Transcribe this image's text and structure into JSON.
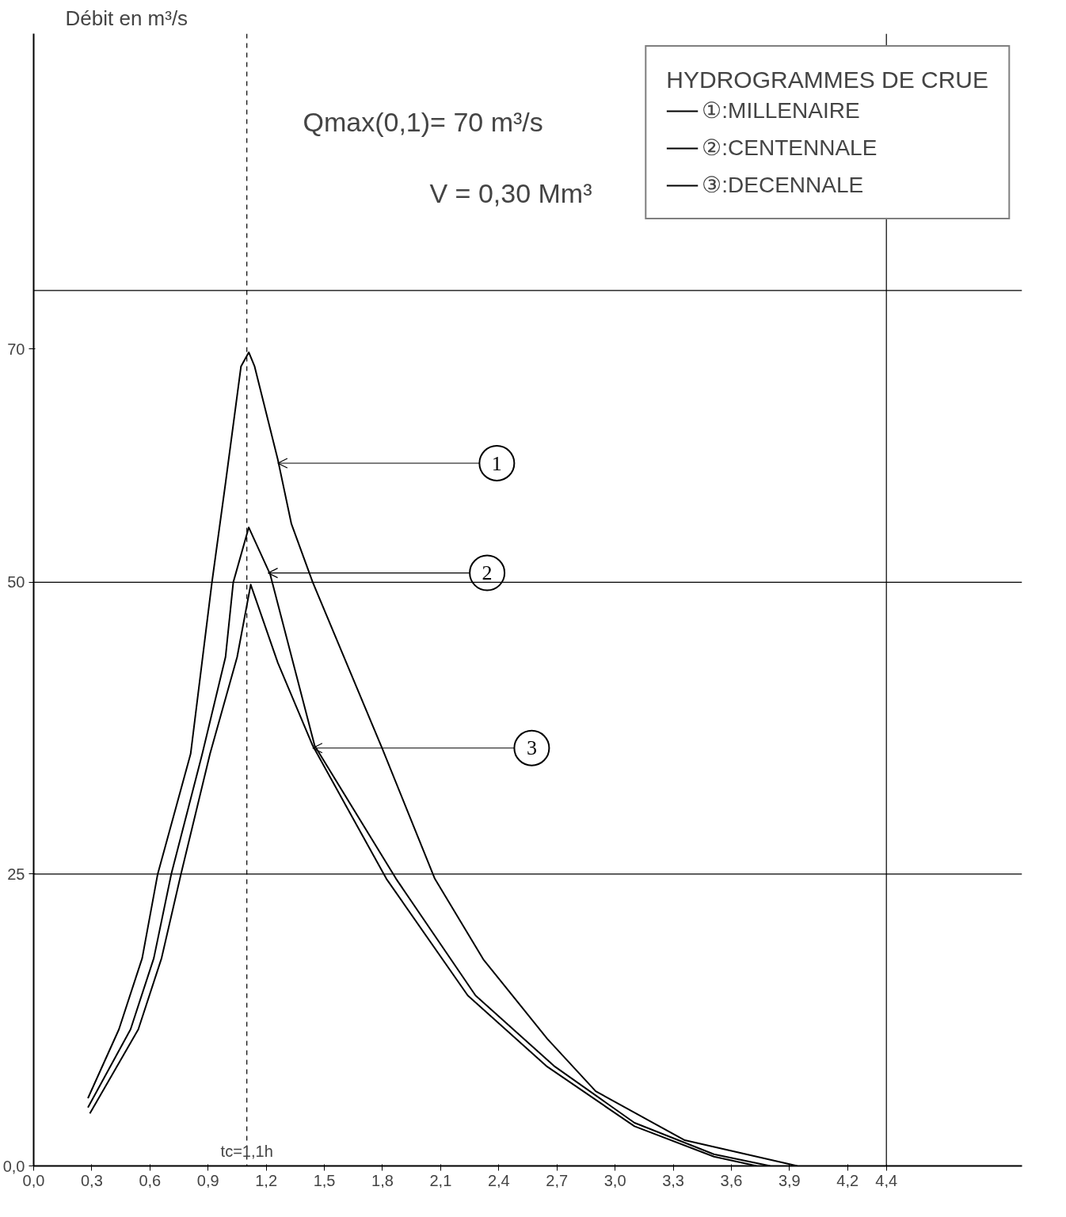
{
  "chart_data": {
    "type": "line",
    "ylabel": "Débit en m³/s",
    "legend_title": "HYDROGRAMMES DE CRUE",
    "x": [
      0.28,
      0.44,
      0.56,
      0.64,
      0.81,
      0.92,
      0.99,
      1.07,
      1.11,
      1.14,
      1.26,
      1.33,
      1.44,
      1.8,
      2.07,
      2.32,
      2.65,
      2.9,
      3.36,
      3.94
    ],
    "series": [
      {
        "name": "①:MILLENAIRE",
        "color": "#000000",
        "values": [
          5.8,
          11.7,
          17.8,
          25,
          35.3,
          50,
          58.5,
          68.5,
          69.7,
          68.5,
          60.5,
          55,
          50,
          35.7,
          24.6,
          17.7,
          10.9,
          6.4,
          2.2,
          0
        ]
      },
      {
        "name": "②:CENTENNALE",
        "color": "#000000",
        "x": [
          0.28,
          0.5,
          0.62,
          0.71,
          0.87,
          0.99,
          1.03,
          1.11,
          1.22,
          1.45,
          1.87,
          2.28,
          2.69,
          3.1,
          3.51,
          3.8
        ],
        "values": [
          5.0,
          11.7,
          17.8,
          25,
          35.3,
          43.6,
          50,
          54.7,
          50.7,
          36,
          24.6,
          14.6,
          8.5,
          3.7,
          1,
          0
        ]
      },
      {
        "name": "③:DECENNALE",
        "color": "#000000",
        "x": [
          0.29,
          0.54,
          0.66,
          0.76,
          0.91,
          1.05,
          1.12,
          1.26,
          1.44,
          1.82,
          2.24,
          2.65,
          3.1,
          3.51,
          3.73
        ],
        "values": [
          4.5,
          11.7,
          17.8,
          25,
          35.3,
          43.6,
          49.8,
          43.1,
          36,
          24.6,
          14.6,
          8.5,
          3.4,
          0.8,
          0
        ]
      }
    ],
    "xlim": [
      0,
      5.1
    ],
    "ylim": [
      0,
      97
    ],
    "xticks": [
      {
        "value": 0,
        "label": "0,0"
      },
      {
        "value": 0.3,
        "label": "0,3"
      },
      {
        "value": 0.6,
        "label": "0,6"
      },
      {
        "value": 0.9,
        "label": "0,9"
      },
      {
        "value": 1.2,
        "label": "1,2"
      },
      {
        "value": 1.5,
        "label": "1,5"
      },
      {
        "value": 1.8,
        "label": "1,8"
      },
      {
        "value": 2.1,
        "label": "2,1"
      },
      {
        "value": 2.4,
        "label": "2,4"
      },
      {
        "value": 2.7,
        "label": "2,7"
      },
      {
        "value": 3.0,
        "label": "3,0"
      },
      {
        "value": 3.3,
        "label": "3,3"
      },
      {
        "value": 3.6,
        "label": "3,6"
      },
      {
        "value": 3.9,
        "label": "3,9"
      },
      {
        "value": 4.2,
        "label": "4,2"
      },
      {
        "value": 4.4,
        "label": "4,4"
      }
    ],
    "yticks": [
      {
        "value": 0,
        "label": "0,0"
      },
      25,
      50,
      70
    ],
    "ref_lines": [
      {
        "axis": "y",
        "value": 25
      },
      {
        "axis": "y",
        "value": 50
      },
      {
        "axis": "y",
        "value": 75
      },
      {
        "axis": "x",
        "value": 4.4
      },
      {
        "axis": "x",
        "value": 1.1,
        "label": "tc=1,1h",
        "line_style": "dashed"
      }
    ],
    "annotations": [
      "Qmax(0,1)= 70 m³/s",
      "V = 0,30 Mm³",
      {
        "text": "1",
        "x": 1.26,
        "y": 60.2
      },
      {
        "text": "2",
        "x": 1.21,
        "y": 50.8
      },
      {
        "text": "3",
        "x": 1.44,
        "y": 35.8
      }
    ],
    "grid": false,
    "legend": "top right",
    "marker": "none",
    "line_style": "solid"
  }
}
